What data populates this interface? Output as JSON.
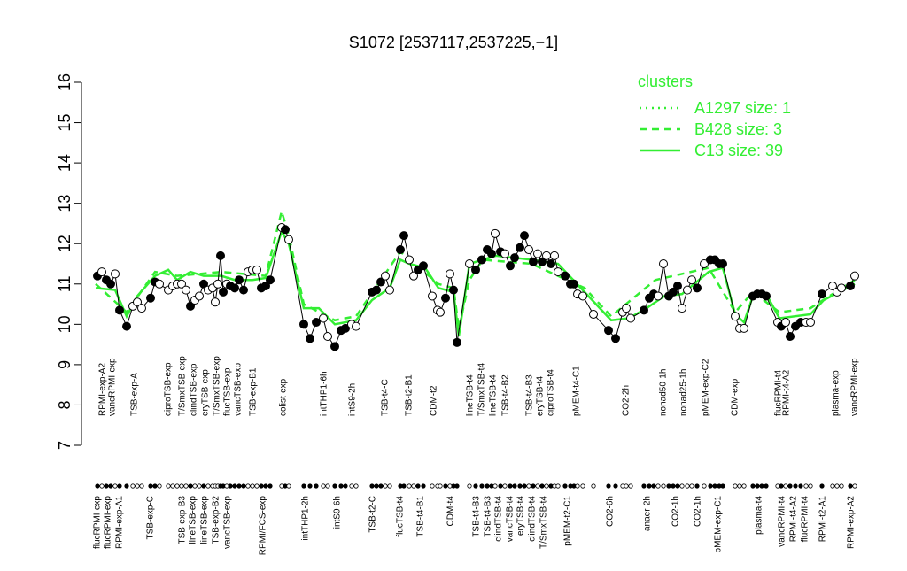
{
  "chart_data": {
    "type": "scatter",
    "title": "S1072 [2537117,2537225,−1]",
    "ylim": [
      7,
      16
    ],
    "yticks": [
      7,
      8,
      9,
      10,
      11,
      12,
      13,
      14,
      15,
      16
    ],
    "xlim": [
      100,
      970
    ],
    "legend_title": "clusters",
    "legend": "top-right",
    "points": {
      "x": [
        110,
        115,
        120,
        125,
        130,
        135,
        143,
        150,
        155,
        160,
        170,
        175,
        180,
        190,
        195,
        200,
        205,
        210,
        215,
        220,
        225,
        230,
        235,
        240,
        243,
        246,
        249,
        252,
        256,
        260,
        265,
        270,
        275,
        280,
        285,
        290,
        295,
        300,
        305,
        318,
        322,
        326,
        343,
        350,
        357,
        365,
        370,
        378,
        385,
        390,
        397,
        402,
        420,
        425,
        430,
        435,
        440,
        452,
        456,
        462,
        467,
        472,
        478,
        488,
        494,
        497,
        503,
        508,
        512,
        516,
        530,
        537,
        544,
        550,
        555,
        559,
        565,
        570,
        576,
        581,
        587,
        592,
        597,
        602,
        607,
        612,
        617,
        622,
        626,
        630,
        638,
        644,
        648,
        652,
        658,
        670,
        687,
        695,
        703,
        707,
        712,
        727,
        733,
        738,
        743,
        749,
        755,
        760,
        765,
        770,
        776,
        781,
        787,
        795,
        802,
        807,
        812,
        816,
        830,
        835,
        840,
        850,
        855,
        860,
        865,
        878,
        882,
        887,
        892,
        898,
        904,
        910,
        915,
        928,
        940,
        945,
        950,
        960,
        965
      ],
      "values": [
        11.2,
        11.3,
        11.1,
        11.0,
        11.25,
        10.35,
        9.95,
        10.45,
        10.55,
        10.4,
        10.65,
        11.05,
        11.0,
        10.85,
        10.95,
        11.0,
        11.0,
        10.85,
        10.45,
        10.6,
        10.7,
        11.0,
        10.85,
        10.9,
        10.55,
        11.0,
        11.7,
        10.8,
        11.0,
        10.95,
        10.9,
        11.1,
        10.85,
        11.3,
        11.35,
        11.35,
        10.9,
        10.95,
        11.1,
        12.4,
        12.35,
        12.1,
        10.0,
        9.65,
        10.05,
        10.15,
        9.7,
        9.45,
        9.85,
        9.9,
        10.0,
        9.95,
        10.8,
        10.85,
        11.05,
        11.2,
        10.85,
        11.85,
        12.2,
        11.6,
        11.2,
        11.35,
        11.45,
        10.7,
        10.35,
        10.3,
        10.65,
        11.25,
        10.85,
        9.55,
        11.5,
        11.35,
        11.6,
        11.85,
        11.75,
        12.25,
        11.8,
        11.75,
        11.45,
        11.65,
        11.9,
        12.2,
        11.85,
        11.55,
        11.75,
        11.55,
        11.7,
        11.5,
        11.7,
        11.3,
        11.2,
        11.0,
        11.0,
        10.75,
        10.7,
        10.25,
        9.85,
        9.65,
        10.3,
        10.4,
        10.15,
        10.35,
        10.65,
        10.75,
        10.7,
        11.5,
        10.7,
        10.8,
        10.95,
        10.4,
        10.85,
        11.1,
        10.9,
        11.5,
        11.6,
        11.6,
        11.5,
        11.5,
        10.2,
        9.9,
        9.9,
        10.7,
        10.75,
        10.75,
        10.7,
        10.05,
        9.95,
        10.05,
        9.7,
        9.95,
        10.05,
        10.05,
        10.05,
        10.75,
        10.95,
        10.8,
        10.9,
        10.95,
        11.2
      ],
      "filled": [
        1,
        0,
        1,
        1,
        0,
        1,
        1,
        0,
        0,
        0,
        1,
        1,
        0,
        0,
        0,
        0,
        0,
        0,
        1,
        0,
        0,
        1,
        0,
        0,
        0,
        0,
        1,
        1,
        0,
        1,
        1,
        1,
        1,
        0,
        0,
        0,
        1,
        1,
        1,
        0,
        1,
        0,
        1,
        1,
        1,
        0,
        0,
        1,
        1,
        1,
        0,
        0,
        1,
        1,
        1,
        0,
        0,
        1,
        1,
        0,
        0,
        1,
        1,
        0,
        0,
        0,
        1,
        0,
        1,
        1,
        0,
        1,
        1,
        1,
        1,
        0,
        1,
        0,
        1,
        1,
        1,
        1,
        0,
        1,
        0,
        1,
        0,
        1,
        0,
        0,
        1,
        1,
        1,
        0,
        0,
        0,
        1,
        1,
        0,
        0,
        0,
        1,
        1,
        1,
        0,
        0,
        1,
        1,
        1,
        0,
        0,
        0,
        1,
        0,
        1,
        1,
        1,
        1,
        0,
        0,
        0,
        1,
        1,
        1,
        1,
        0,
        1,
        0,
        1,
        1,
        1,
        0,
        0,
        1,
        0,
        0,
        0,
        1,
        0
      ]
    },
    "series": [
      {
        "name": "A1297 size: 1",
        "style": "dotted",
        "color": "#33ee33",
        "x": [],
        "values": []
      },
      {
        "name": "B428 size: 3",
        "style": "dashed",
        "color": "#33ee33",
        "x": [
          108,
          143,
          175,
          200,
          250,
          300,
          318,
          326,
          343,
          378,
          402,
          452,
          495,
          512,
          518,
          530,
          545,
          600,
          660,
          690,
          740,
          800,
          830,
          850,
          880,
          915,
          965
        ],
        "values": [
          11.0,
          10.3,
          11.3,
          11.2,
          11.3,
          11.2,
          12.8,
          12.2,
          10.5,
          10.1,
          10.2,
          11.8,
          11.0,
          10.9,
          9.9,
          11.1,
          11.6,
          11.5,
          10.9,
          10.2,
          11.1,
          11.4,
          10.3,
          10.8,
          10.3,
          10.4,
          11.1
        ]
      },
      {
        "name": "C13 size: 39",
        "style": "solid",
        "color": "#33ee33",
        "x": [
          108,
          130,
          143,
          155,
          175,
          190,
          200,
          215,
          230,
          250,
          265,
          285,
          300,
          318,
          326,
          343,
          360,
          378,
          402,
          420,
          440,
          452,
          462,
          480,
          495,
          512,
          518,
          530,
          560,
          600,
          630,
          660,
          690,
          710,
          730,
          750,
          770,
          800,
          816,
          830,
          840,
          850,
          865,
          880,
          915,
          930,
          965
        ],
        "values": [
          10.9,
          10.85,
          10.2,
          10.7,
          11.2,
          11.35,
          11.1,
          11.3,
          11.2,
          11.2,
          11.1,
          11.1,
          11.15,
          12.3,
          12.0,
          10.4,
          10.4,
          10.0,
          10.1,
          10.6,
          10.9,
          11.6,
          11.5,
          11.4,
          10.9,
          10.8,
          9.7,
          11.5,
          11.7,
          11.6,
          11.5,
          10.8,
          10.1,
          10.15,
          10.4,
          10.7,
          10.75,
          11.3,
          11.4,
          10.25,
          10.05,
          10.7,
          10.75,
          10.15,
          10.25,
          10.6,
          11.0
        ]
      }
    ],
    "top_labels": {
      "text": [
        "RPMI-exp-A2",
        "vancRPMI-exp",
        "TSB-exp-A",
        "ciproTSB-exp",
        "T/SmxTSB-exp",
        "clindTSB-exp",
        "eryTSB-exp",
        "T/SmxTSB-exp",
        "flucTSB-exp",
        "vancTSB-exp",
        "TSB-exp-B1",
        "colist-exp",
        "intTHP1-6h",
        "intS9-2h",
        "TSB-t4-C",
        "TSB-t2-B1",
        "CDM-t2",
        "lineTSB-t4",
        "T/SmxTSB-t4",
        "lineTSB-t4",
        "TSB-t4-B2",
        "TSB-t4-B3",
        "eryTSB-t4",
        "ciproTSB-t4",
        "pMEM-t4-C1",
        "CO2-2h",
        "nonad50-1h",
        "nonad25-1h",
        "pMEM-exp-C2",
        "CDM-exp",
        "flucRPMI-t4",
        "RPMI-t4-A2",
        "plasma-exp",
        "vancRPMI-exp"
      ],
      "x": [
        116,
        127,
        152,
        190,
        206,
        219,
        232,
        245,
        257,
        269,
        286,
        320,
        366,
        398,
        435,
        462,
        490,
        531,
        544,
        557,
        571,
        598,
        610,
        622,
        651,
        707,
        749,
        772,
        797,
        830,
        879,
        888,
        944,
        965
      ]
    },
    "bottom_labels": {
      "text": [
        "flucRPMI-exp",
        "flucRPMI-exp",
        "RPMI-exp-A1",
        "TSB-exp-C",
        "TSB-exp-B3",
        "lineTSB-exp",
        "lineTSB-exp",
        "TSB-exp-B2",
        "vancTSB-exp",
        "RPMI/FCS-exp",
        "intTHP1-2h",
        "intS9-6h",
        "TSB-t2-C",
        "flucTSB-t4",
        "TSB-t4-B1",
        "CDM-t4",
        "TSB-t4-B3",
        "TSB-t4-B3",
        "clindTSB-t4",
        "vancTSB-t4",
        "eryTSB-t4",
        "clindTSB-t4",
        "T/SmxTSB-t4",
        "pMEM-t2-C1",
        "CO2-6h",
        "anaer-2h",
        "CO2-1h",
        "CO2-1h",
        "pMEM-exp-C1",
        "plasma-t4",
        "vancRPMI-t4",
        "RPMI-t4-A2",
        "flucRPMI-t4",
        "RPMI-t2-A1",
        "RPMI-exp-A2"
      ],
      "x": [
        110,
        122,
        135,
        170,
        206,
        218,
        231,
        244,
        257,
        297,
        345,
        381,
        421,
        452,
        475,
        509,
        538,
        551,
        563,
        576,
        588,
        601,
        614,
        641,
        689,
        731,
        763,
        788,
        811,
        857,
        883,
        896,
        909,
        929,
        961
      ]
    }
  }
}
